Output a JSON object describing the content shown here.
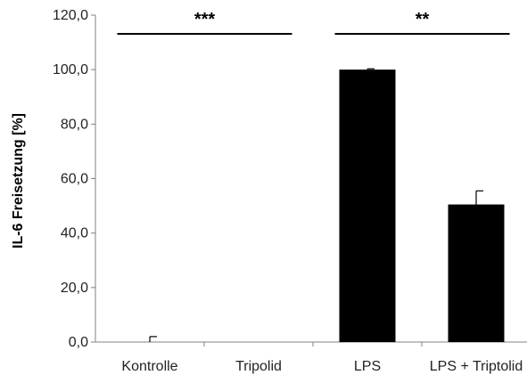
{
  "chart_data": {
    "type": "bar",
    "title": "",
    "xlabel": "",
    "ylabel": "IL-6 Freisetzung [%]",
    "ylim": [
      0,
      120
    ],
    "yticks": [
      "0,0",
      "20,0",
      "40,0",
      "60,0",
      "80,0",
      "100,0",
      "120,0"
    ],
    "categories": [
      "Kontrolle",
      "Tripolid",
      "LPS",
      "LPS + Triptolid"
    ],
    "values": [
      0.0,
      0.0,
      100.0,
      50.5
    ],
    "errors": [
      2.0,
      0.0,
      0.3,
      5.0
    ],
    "bar_color": "#000000",
    "grid": false,
    "significance": [
      {
        "label": "***",
        "from": 0,
        "to": 1
      },
      {
        "label": "**",
        "from": 2,
        "to": 3
      }
    ]
  }
}
